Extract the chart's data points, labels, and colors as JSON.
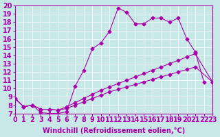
{
  "xlabel": "Windchill (Refroidissement éolien,°C)",
  "background_color": "#c8e8e8",
  "line_color": "#aa00aa",
  "xlim": [
    0,
    23
  ],
  "ylim": [
    7,
    20
  ],
  "xticks": [
    0,
    1,
    2,
    3,
    4,
    5,
    6,
    7,
    8,
    9,
    10,
    11,
    12,
    13,
    14,
    15,
    16,
    17,
    18,
    19,
    20,
    21,
    22,
    23
  ],
  "yticks": [
    7,
    8,
    9,
    10,
    11,
    12,
    13,
    14,
    15,
    16,
    17,
    18,
    19,
    20
  ],
  "grid_color": "#ffffff",
  "font_size": 7,
  "marker": "D",
  "marker_size": 2.5,
  "series1_x": [
    0,
    1,
    2,
    3,
    4,
    5,
    6,
    7,
    8,
    9,
    10,
    11,
    12,
    13,
    14,
    15,
    16,
    17,
    18,
    19,
    20,
    21,
    22
  ],
  "series1_y": [
    8.8,
    7.8,
    8.0,
    7.1,
    7.0,
    7.0,
    7.2,
    10.3,
    12.2,
    14.8,
    15.5,
    16.9,
    19.7,
    19.2,
    17.8,
    17.8,
    18.5,
    18.5,
    18.0,
    18.5,
    16.0,
    14.4,
    10.8
  ],
  "series2_x": [
    0,
    1,
    2,
    3,
    4,
    5,
    6,
    7,
    8,
    9,
    10,
    11,
    12,
    13,
    14,
    15,
    16,
    17,
    18,
    19,
    20,
    21,
    23
  ],
  "series2_y": [
    8.8,
    7.8,
    8.0,
    7.5,
    7.5,
    7.4,
    7.8,
    8.3,
    8.8,
    9.3,
    9.8,
    10.2,
    10.6,
    11.0,
    11.4,
    11.8,
    12.2,
    12.6,
    13.0,
    13.4,
    13.8,
    14.2,
    10.8
  ],
  "series3_x": [
    0,
    1,
    2,
    3,
    4,
    5,
    6,
    7,
    8,
    9,
    10,
    11,
    12,
    13,
    14,
    15,
    16,
    17,
    18,
    19,
    20,
    21,
    23
  ],
  "series3_y": [
    8.8,
    7.8,
    8.0,
    7.5,
    7.5,
    7.4,
    7.6,
    8.0,
    8.4,
    8.8,
    9.2,
    9.6,
    9.9,
    10.2,
    10.5,
    10.8,
    11.1,
    11.4,
    11.7,
    12.0,
    12.3,
    12.6,
    10.8
  ]
}
